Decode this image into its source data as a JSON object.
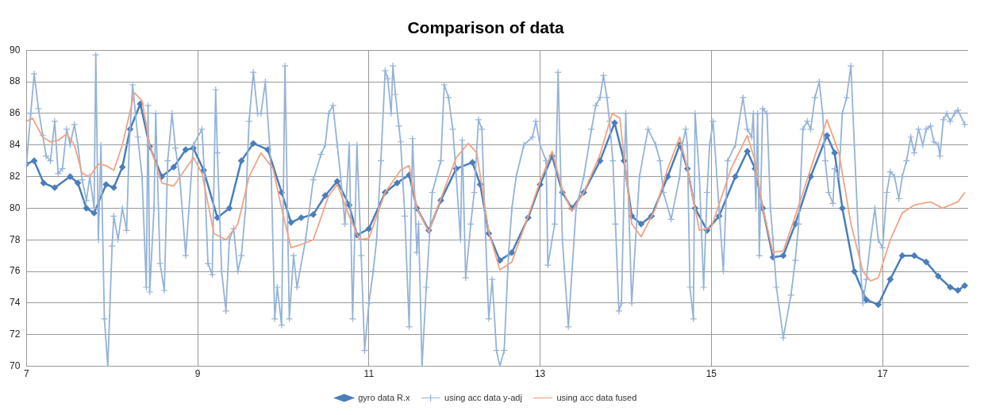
{
  "chart_data": {
    "type": "line",
    "title": "Comparison of data",
    "xlim": [
      7,
      18
    ],
    "xticks": [
      7,
      9,
      11,
      13,
      15,
      17
    ],
    "ylim": [
      70,
      90
    ],
    "yticks": [
      70,
      72,
      74,
      76,
      78,
      80,
      82,
      84,
      86,
      88,
      90
    ],
    "grid": true,
    "legend": "bottom",
    "series": [
      {
        "name": "gyro data R.x",
        "color": "#4a7ebb",
        "marker": "diamond",
        "x": [
          7.0,
          7.09,
          7.2,
          7.33,
          7.51,
          7.6,
          7.7,
          7.79,
          7.93,
          8.02,
          8.12,
          8.21,
          8.33,
          8.44,
          8.58,
          8.72,
          8.86,
          8.95,
          9.07,
          9.23,
          9.37,
          9.51,
          9.65,
          9.82,
          9.98,
          10.09,
          10.21,
          10.35,
          10.49,
          10.63,
          10.77,
          10.86,
          11.0,
          11.19,
          11.33,
          11.47,
          11.56,
          11.7,
          11.84,
          12.02,
          12.21,
          12.3,
          12.4,
          12.53,
          12.67,
          12.86,
          13.0,
          13.14,
          13.26,
          13.37,
          13.51,
          13.7,
          13.87,
          13.98,
          14.07,
          14.18,
          14.3,
          14.49,
          14.63,
          14.72,
          14.81,
          14.95,
          15.09,
          15.28,
          15.42,
          15.51,
          15.6,
          15.72,
          15.84,
          15.98,
          16.16,
          16.35,
          16.44,
          16.53,
          16.67,
          16.81,
          16.95,
          17.09,
          17.23,
          17.37,
          17.51,
          17.65,
          17.79,
          17.88,
          17.96
        ],
        "values": [
          82.8,
          83.0,
          81.6,
          81.3,
          82.0,
          81.6,
          80.0,
          79.7,
          81.5,
          81.3,
          82.6,
          85.0,
          86.6,
          83.9,
          82.0,
          82.6,
          83.7,
          83.8,
          82.4,
          79.4,
          80.0,
          83.0,
          84.1,
          83.7,
          81.0,
          79.1,
          79.4,
          79.6,
          80.8,
          81.7,
          80.2,
          78.3,
          78.7,
          81.0,
          81.6,
          82.1,
          80.0,
          78.6,
          80.5,
          82.5,
          82.9,
          81.5,
          78.4,
          76.7,
          77.2,
          79.4,
          81.5,
          83.3,
          81.0,
          80.0,
          81.0,
          83.0,
          85.4,
          83.0,
          79.5,
          79.0,
          79.5,
          82.0,
          84.0,
          82.5,
          80.0,
          78.6,
          79.5,
          82.0,
          83.6,
          82.5,
          80.0,
          76.9,
          77.0,
          79.0,
          82.0,
          84.6,
          83.5,
          80.0,
          76.0,
          74.2,
          73.9,
          75.5,
          77.0,
          77.0,
          76.6,
          75.7,
          75.0,
          74.8,
          75.1
        ]
      },
      {
        "name": "using acc data y-adj",
        "color": "#95b3d7",
        "marker": "cross",
        "x": [
          7.0,
          7.05,
          7.09,
          7.14,
          7.19,
          7.23,
          7.28,
          7.33,
          7.37,
          7.42,
          7.47,
          7.51,
          7.56,
          7.6,
          7.65,
          7.7,
          7.74,
          7.79,
          7.81,
          7.84,
          7.87,
          7.91,
          7.95,
          8.0,
          8.02,
          8.07,
          8.12,
          8.17,
          8.2,
          8.24,
          8.3,
          8.35,
          8.4,
          8.42,
          8.44,
          8.49,
          8.51,
          8.56,
          8.61,
          8.65,
          8.7,
          8.74,
          8.79,
          8.86,
          8.95,
          9.05,
          9.08,
          9.12,
          9.17,
          9.21,
          9.23,
          9.28,
          9.33,
          9.37,
          9.42,
          9.47,
          9.51,
          9.56,
          9.6,
          9.65,
          9.7,
          9.74,
          9.79,
          9.84,
          9.86,
          9.9,
          9.93,
          9.98,
          10.02,
          10.07,
          10.12,
          10.16,
          10.26,
          10.35,
          10.44,
          10.49,
          10.53,
          10.58,
          10.63,
          10.67,
          10.72,
          10.77,
          10.81,
          10.86,
          10.91,
          10.95,
          11.0,
          11.05,
          11.09,
          11.14,
          11.19,
          11.22,
          11.26,
          11.28,
          11.31,
          11.35,
          11.37,
          11.42,
          11.47,
          11.51,
          11.56,
          11.58,
          11.62,
          11.67,
          11.74,
          11.84,
          11.88,
          11.93,
          11.98,
          12.02,
          12.07,
          12.09,
          12.13,
          12.19,
          12.23,
          12.28,
          12.32,
          12.35,
          12.4,
          12.44,
          12.49,
          12.53,
          12.58,
          12.63,
          12.67,
          12.72,
          12.81,
          12.91,
          12.95,
          13.0,
          13.07,
          13.09,
          13.17,
          13.21,
          13.26,
          13.33,
          13.42,
          13.51,
          13.6,
          13.65,
          13.7,
          13.74,
          13.78,
          13.81,
          13.85,
          13.88,
          13.92,
          13.95,
          14.0,
          14.07,
          14.16,
          14.26,
          14.35,
          14.4,
          14.44,
          14.53,
          14.63,
          14.66,
          14.7,
          14.72,
          14.75,
          14.79,
          14.81,
          14.86,
          14.91,
          14.95,
          14.98,
          15.02,
          15.09,
          15.14,
          15.19,
          15.28,
          15.37,
          15.42,
          15.47,
          15.49,
          15.52,
          15.54,
          15.56,
          15.6,
          15.65,
          15.69,
          15.72,
          15.76,
          15.84,
          15.93,
          15.98,
          16.02,
          16.07,
          16.12,
          16.16,
          16.21,
          16.26,
          16.3,
          16.33,
          16.37,
          16.42,
          16.44,
          16.49,
          16.53,
          16.58,
          16.63,
          16.67,
          16.72,
          16.77,
          16.81,
          16.86,
          16.91,
          16.95,
          17.0,
          17.05,
          17.09,
          17.14,
          17.19,
          17.23,
          17.28,
          17.33,
          17.37,
          17.42,
          17.47,
          17.51,
          17.56,
          17.6,
          17.65,
          17.67,
          17.71,
          17.75,
          17.79,
          17.84,
          17.88,
          17.96
        ],
        "values": [
          82.8,
          86.0,
          88.5,
          86.3,
          84.6,
          83.3,
          83.0,
          85.5,
          82.2,
          82.5,
          85.0,
          84.0,
          85.3,
          84.0,
          81.8,
          80.5,
          82.0,
          80.0,
          89.7,
          78.0,
          84.0,
          73.0,
          70.0,
          77.6,
          79.5,
          78.0,
          80.0,
          78.6,
          84.0,
          87.8,
          84.5,
          82.0,
          75.0,
          86.5,
          74.7,
          80.0,
          86.0,
          76.5,
          74.8,
          83.0,
          86.0,
          83.8,
          82.0,
          77.0,
          84.0,
          85.0,
          82.0,
          76.5,
          75.8,
          87.5,
          83.5,
          76.0,
          73.5,
          78.0,
          78.7,
          76.0,
          77.0,
          80.0,
          85.5,
          88.6,
          86.0,
          86.0,
          88.0,
          84.0,
          82.0,
          73.0,
          75.0,
          72.6,
          89.0,
          73.0,
          77.0,
          75.0,
          78.0,
          81.8,
          83.4,
          84.0,
          86.0,
          86.5,
          84.0,
          82.0,
          79.0,
          84.0,
          73.0,
          84.0,
          77.0,
          71.0,
          74.0,
          76.0,
          78.0,
          83.0,
          88.7,
          88.2,
          86.0,
          89.0,
          87.2,
          85.2,
          84.2,
          79.5,
          72.5,
          84.4,
          77.2,
          79.0,
          70.0,
          75.0,
          81.0,
          83.0,
          87.8,
          87.0,
          85.0,
          82.0,
          78.0,
          84.3,
          75.6,
          79.0,
          81.0,
          85.6,
          85.0,
          80.0,
          73.0,
          75.5,
          71.0,
          70.0,
          71.0,
          77.0,
          80.0,
          82.0,
          84.0,
          84.5,
          85.5,
          84.0,
          83.0,
          76.4,
          79.0,
          88.6,
          78.0,
          72.5,
          80.0,
          82.0,
          85.0,
          86.5,
          87.0,
          88.4,
          87.0,
          85.5,
          83.0,
          79.0,
          73.5,
          74.0,
          86.0,
          74.0,
          82.0,
          85.0,
          84.0,
          83.0,
          81.0,
          79.3,
          82.0,
          84.0,
          85.0,
          84.0,
          75.0,
          73.0,
          86.0,
          82.0,
          75.0,
          81.0,
          84.0,
          85.5,
          80.0,
          76.0,
          83.0,
          84.0,
          87.0,
          85.0,
          84.5,
          86.0,
          80.0,
          86.0,
          77.0,
          86.3,
          86.0,
          80.0,
          78.0,
          75.0,
          71.8,
          74.5,
          76.7,
          79.0,
          85.0,
          85.5,
          85.0,
          87.0,
          88.0,
          86.0,
          83.0,
          81.0,
          80.3,
          82.5,
          82.0,
          86.0,
          87.0,
          89.0,
          84.0,
          78.0,
          74.0,
          75.5,
          78.0,
          80.0,
          78.0,
          77.5,
          81.0,
          82.3,
          82.0,
          80.6,
          82.0,
          83.0,
          84.5,
          83.5,
          85.0,
          84.0,
          85.0,
          85.2,
          84.2,
          84.0,
          83.3,
          85.6,
          86.0,
          85.5,
          86.0,
          86.2,
          85.3
        ]
      },
      {
        "name": "using acc data fused",
        "color": "#f2a384",
        "marker": "none",
        "x": [
          7.0,
          7.07,
          7.19,
          7.28,
          7.37,
          7.47,
          7.56,
          7.65,
          7.74,
          7.84,
          7.93,
          8.02,
          8.12,
          8.26,
          8.35,
          8.44,
          8.58,
          8.72,
          8.86,
          8.95,
          9.05,
          9.19,
          9.33,
          9.47,
          9.6,
          9.74,
          9.88,
          9.98,
          10.09,
          10.21,
          10.35,
          10.53,
          10.63,
          10.77,
          10.89,
          11.0,
          11.19,
          11.37,
          11.47,
          11.56,
          11.7,
          11.84,
          12.02,
          12.16,
          12.26,
          12.4,
          12.53,
          12.67,
          12.86,
          13.0,
          13.14,
          13.26,
          13.37,
          13.51,
          13.7,
          13.84,
          13.93,
          14.07,
          14.18,
          14.35,
          14.49,
          14.63,
          14.72,
          14.86,
          15.0,
          15.23,
          15.42,
          15.51,
          15.6,
          15.72,
          15.84,
          15.98,
          16.16,
          16.35,
          16.49,
          16.63,
          16.77,
          16.86,
          16.95,
          17.09,
          17.23,
          17.37,
          17.56,
          17.7,
          17.88,
          17.96
        ],
        "values": [
          85.5,
          85.7,
          84.5,
          84.2,
          84.3,
          84.7,
          84.0,
          82.2,
          82.0,
          82.8,
          82.7,
          82.4,
          84.0,
          87.3,
          86.8,
          84.0,
          81.6,
          81.4,
          82.5,
          83.2,
          82.2,
          78.4,
          78.0,
          79.0,
          82.0,
          83.5,
          82.5,
          80.0,
          77.5,
          77.7,
          78.0,
          80.8,
          81.5,
          79.5,
          78.0,
          78.1,
          81.0,
          82.4,
          82.7,
          80.0,
          78.5,
          80.6,
          83.2,
          84.1,
          83.5,
          78.5,
          76.1,
          76.6,
          79.5,
          81.7,
          83.6,
          81.2,
          79.8,
          81.0,
          83.4,
          86.0,
          85.7,
          79.0,
          78.2,
          80.0,
          82.5,
          84.5,
          82.5,
          78.6,
          78.8,
          82.5,
          84.6,
          83.0,
          80.0,
          77.2,
          77.3,
          79.5,
          82.5,
          85.6,
          83.5,
          79.0,
          76.0,
          75.4,
          75.6,
          78.0,
          79.7,
          80.2,
          80.4,
          80.0,
          80.4,
          81.0
        ]
      }
    ]
  }
}
